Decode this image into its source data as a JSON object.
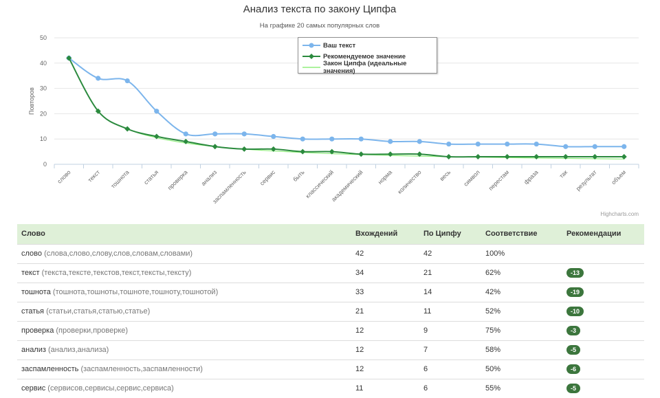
{
  "chart_data": {
    "type": "line",
    "title": "Анализ текста по закону Ципфа",
    "subtitle": "На графике 20 самых популярных слов",
    "ylabel": "Повторов",
    "xlabel": "",
    "ylim": [
      0,
      50
    ],
    "yticks": [
      0,
      10,
      20,
      30,
      40,
      50
    ],
    "grid": true,
    "legend_position": "top-center",
    "categories": [
      "слово",
      "текст",
      "тошнота",
      "статья",
      "проверка",
      "анализ",
      "заспамленность",
      "сервис",
      "быть",
      "классический",
      "академический",
      "норма",
      "количество",
      "весь",
      "символ",
      "перестам",
      "фраза",
      "так",
      "результат",
      "объем"
    ],
    "series": [
      {
        "name": "Ваш текст",
        "color": "#7cb5ec",
        "marker": "circle",
        "values": [
          42,
          34,
          33,
          21,
          12,
          12,
          12,
          11,
          10,
          10,
          10,
          9,
          9,
          8,
          8,
          8,
          8,
          7,
          7,
          7
        ]
      },
      {
        "name": "Рекомендуемое значение",
        "color": "#2b8a3e",
        "marker": "diamond",
        "values": [
          42,
          21,
          14,
          11,
          9,
          7,
          6,
          6,
          5,
          5,
          4,
          4,
          4,
          3,
          3,
          3,
          3,
          3,
          3,
          3
        ]
      },
      {
        "name": "Закон Ципфа (идеальные значения)",
        "color": "#90ed7d",
        "marker": "none",
        "values": [
          42,
          21,
          14,
          10.5,
          8.4,
          7,
          6,
          5.25,
          4.67,
          4.2,
          3.82,
          3.5,
          3.23,
          3,
          2.8,
          2.63,
          2.47,
          2.33,
          2.21,
          2.1
        ]
      }
    ],
    "credits": "Highcharts.com"
  },
  "table": {
    "headers": [
      "Слово",
      "Вхождений",
      "По Ципфу",
      "Соответствие",
      "Рекомендации"
    ],
    "rows": [
      {
        "word": "слово",
        "forms": "(слова,слово,слову,слов,словам,словами)",
        "occurrences": "42",
        "zipf": "42",
        "match": "100%",
        "recommendation": ""
      },
      {
        "word": "текст",
        "forms": "(текста,тексте,текстов,текст,тексты,тексту)",
        "occurrences": "34",
        "zipf": "21",
        "match": "62%",
        "recommendation": "-13"
      },
      {
        "word": "тошнота",
        "forms": "(тошнота,тошноты,тошноте,тошноту,тошнотой)",
        "occurrences": "33",
        "zipf": "14",
        "match": "42%",
        "recommendation": "-19"
      },
      {
        "word": "статья",
        "forms": "(статьи,статья,статью,статье)",
        "occurrences": "21",
        "zipf": "11",
        "match": "52%",
        "recommendation": "-10"
      },
      {
        "word": "проверка",
        "forms": "(проверки,проверке)",
        "occurrences": "12",
        "zipf": "9",
        "match": "75%",
        "recommendation": "-3"
      },
      {
        "word": "анализ",
        "forms": "(анализ,анализа)",
        "occurrences": "12",
        "zipf": "7",
        "match": "58%",
        "recommendation": "-5"
      },
      {
        "word": "заспамленность",
        "forms": "(заспамленность,заспамленности)",
        "occurrences": "12",
        "zipf": "6",
        "match": "50%",
        "recommendation": "-6"
      },
      {
        "word": "сервис",
        "forms": "(сервисов,сервисы,сервис,сервиса)",
        "occurrences": "11",
        "zipf": "6",
        "match": "55%",
        "recommendation": "-5"
      }
    ]
  }
}
